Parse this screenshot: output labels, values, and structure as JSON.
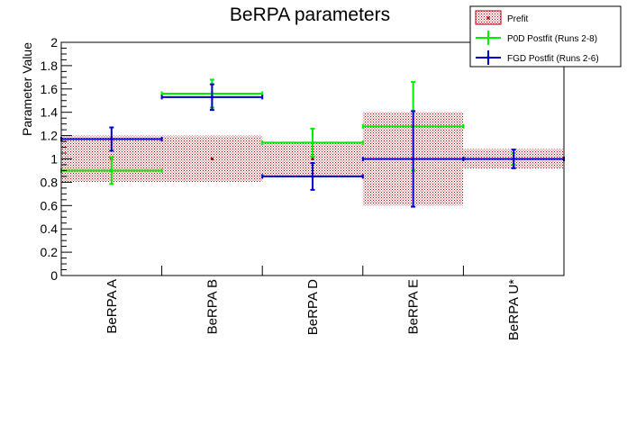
{
  "chart_data": {
    "type": "bar",
    "title": "BeRPA parameters",
    "ylabel": "Parameter Value",
    "xlabel": "",
    "ylim": [
      0,
      2
    ],
    "yticks": [
      "0",
      "0.2",
      "0.4",
      "0.6",
      "0.8",
      "1",
      "1.2",
      "1.4",
      "1.6",
      "1.8",
      "2"
    ],
    "categories": [
      "BeRPA A",
      "BeRPA B",
      "BeRPA D",
      "BeRPA E",
      "BeRPA U*"
    ],
    "legend_position": "top-right",
    "series": [
      {
        "name": "Prefit",
        "color": "#b0000b",
        "style": "hatched-band",
        "values": [
          1.0,
          1.0,
          1.0,
          1.0,
          1.0
        ],
        "errors": [
          0.2,
          0.2,
          0.15,
          0.4,
          0.085
        ]
      },
      {
        "name": "P0D Postfit (Runs 2-8)",
        "color": "#00ee00",
        "style": "errorbar",
        "values": [
          0.9,
          1.56,
          1.14,
          1.28,
          1.0
        ],
        "errors": [
          0.115,
          0.12,
          0.12,
          0.38,
          0.05
        ]
      },
      {
        "name": "FGD Postfit (Runs 2-6)",
        "color": "#0000cc",
        "style": "errorbar",
        "values": [
          1.17,
          1.53,
          0.85,
          1.0,
          1.0
        ],
        "errors": [
          0.1,
          0.11,
          0.115,
          0.41,
          0.08
        ]
      }
    ]
  }
}
